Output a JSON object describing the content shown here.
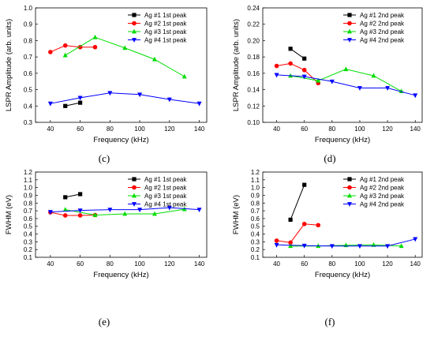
{
  "chart_data": [
    {
      "type": "line",
      "panel_label": "(c)",
      "xlabel": "Frequency (kHz)",
      "ylabel": "LSPR Amplitude (arb. units)",
      "xlim": [
        30,
        145
      ],
      "ylim": [
        0.3,
        1.0
      ],
      "xticks": [
        40,
        60,
        80,
        100,
        120,
        140
      ],
      "xtick_labels": [
        "40",
        "60",
        "80",
        "100",
        "120",
        "140"
      ],
      "yticks": [
        0.3,
        0.4,
        0.5,
        0.6,
        0.7,
        0.8,
        0.9,
        1.0
      ],
      "ytick_labels": [
        "0.3",
        "0.4",
        "0.5",
        "0.6",
        "0.7",
        "0.8",
        "0.9",
        "1.0"
      ],
      "legend_position": "top-right",
      "series": [
        {
          "name": "Ag #1 1st peak",
          "color": "#000000",
          "marker": "square",
          "x": [
            50,
            60
          ],
          "y": [
            0.4,
            0.42
          ]
        },
        {
          "name": "Ag #2 1st peak",
          "color": "#ff0000",
          "marker": "circle",
          "x": [
            40,
            50,
            60,
            70
          ],
          "y": [
            0.73,
            0.77,
            0.76,
            0.76
          ]
        },
        {
          "name": "Ag #3 1st peak",
          "color": "#00dd00",
          "marker": "triangle-up",
          "x": [
            50,
            70,
            90,
            110,
            130
          ],
          "y": [
            0.71,
            0.82,
            0.755,
            0.685,
            0.58
          ]
        },
        {
          "name": "Ag #4 1st peak",
          "color": "#0000ff",
          "marker": "triangle-down",
          "x": [
            40,
            60,
            80,
            100,
            120,
            140
          ],
          "y": [
            0.415,
            0.45,
            0.48,
            0.47,
            0.44,
            0.415
          ]
        }
      ]
    },
    {
      "type": "line",
      "panel_label": "(d)",
      "xlabel": "Frequency (kHz)",
      "ylabel": "LSPR Amplitude (arb. units)",
      "xlim": [
        30,
        145
      ],
      "ylim": [
        0.1,
        0.24
      ],
      "xticks": [
        40,
        60,
        80,
        100,
        120,
        140
      ],
      "xtick_labels": [
        "40",
        "60",
        "80",
        "100",
        "120",
        "140"
      ],
      "yticks": [
        0.1,
        0.12,
        0.14,
        0.16,
        0.18,
        0.2,
        0.22,
        0.24
      ],
      "ytick_labels": [
        "0.10",
        "0.12",
        "0.14",
        "0.16",
        "0.18",
        "0.20",
        "0.22",
        "0.24"
      ],
      "legend_position": "top-right",
      "series": [
        {
          "name": "Ag #1 2nd peak",
          "color": "#000000",
          "marker": "square",
          "x": [
            50,
            60
          ],
          "y": [
            0.19,
            0.178
          ]
        },
        {
          "name": "Ag #2 2nd peak",
          "color": "#ff0000",
          "marker": "circle",
          "x": [
            40,
            50,
            60,
            70
          ],
          "y": [
            0.169,
            0.172,
            0.164,
            0.148
          ]
        },
        {
          "name": "Ag #3 2nd peak",
          "color": "#00dd00",
          "marker": "triangle-up",
          "x": [
            50,
            70,
            90,
            110,
            130
          ],
          "y": [
            0.157,
            0.151,
            0.165,
            0.157,
            0.138
          ]
        },
        {
          "name": "Ag #4 2nd peak",
          "color": "#0000ff",
          "marker": "triangle-down",
          "x": [
            40,
            60,
            80,
            100,
            120,
            140
          ],
          "y": [
            0.158,
            0.156,
            0.15,
            0.142,
            0.142,
            0.133
          ]
        }
      ]
    },
    {
      "type": "line",
      "panel_label": "(e)",
      "xlabel": "Frequency (kHz)",
      "ylabel": "FWHM (eV)",
      "xlim": [
        30,
        145
      ],
      "ylim": [
        0.1,
        1.2
      ],
      "xticks": [
        40,
        60,
        80,
        100,
        120,
        140
      ],
      "xtick_labels": [
        "40",
        "60",
        "80",
        "100",
        "120",
        "140"
      ],
      "yticks": [
        0.1,
        0.2,
        0.3,
        0.4,
        0.5,
        0.6,
        0.7,
        0.8,
        0.9,
        1.0,
        1.1,
        1.2
      ],
      "ytick_labels": [
        "0.1",
        "0.2",
        "0.3",
        "0.4",
        "0.5",
        "0.6",
        "0.7",
        "0.8",
        "0.9",
        "1.0",
        "1.1",
        "1.2"
      ],
      "legend_position": "top-right",
      "series": [
        {
          "name": "Ag #1 1st peak",
          "color": "#000000",
          "marker": "square",
          "x": [
            50,
            60
          ],
          "y": [
            0.875,
            0.915
          ]
        },
        {
          "name": "Ag #2 1st peak",
          "color": "#ff0000",
          "marker": "circle",
          "x": [
            40,
            50,
            60,
            70
          ],
          "y": [
            0.68,
            0.64,
            0.64,
            0.645
          ]
        },
        {
          "name": "Ag #3 1st peak",
          "color": "#00dd00",
          "marker": "triangle-up",
          "x": [
            50,
            70,
            90,
            110,
            130
          ],
          "y": [
            0.715,
            0.645,
            0.66,
            0.66,
            0.72
          ]
        },
        {
          "name": "Ag #4 1st peak",
          "color": "#0000ff",
          "marker": "triangle-down",
          "x": [
            40,
            60,
            80,
            100,
            120,
            140
          ],
          "y": [
            0.685,
            0.705,
            0.715,
            0.715,
            0.74,
            0.715
          ]
        }
      ]
    },
    {
      "type": "line",
      "panel_label": "(f)",
      "xlabel": "Frequency (kHz)",
      "ylabel": "FWHM (eV)",
      "xlim": [
        30,
        145
      ],
      "ylim": [
        0.1,
        1.2
      ],
      "xticks": [
        40,
        60,
        80,
        100,
        120,
        140
      ],
      "xtick_labels": [
        "40",
        "60",
        "80",
        "100",
        "120",
        "140"
      ],
      "yticks": [
        0.1,
        0.2,
        0.3,
        0.4,
        0.5,
        0.6,
        0.7,
        0.8,
        0.9,
        1.0,
        1.1,
        1.2
      ],
      "ytick_labels": [
        "0.1",
        "0.2",
        "0.3",
        "0.4",
        "0.5",
        "0.6",
        "0.7",
        "0.8",
        "0.9",
        "1.0",
        "1.1",
        "1.2"
      ],
      "legend_position": "top-right",
      "series": [
        {
          "name": "Ag #1 2nd peak",
          "color": "#000000",
          "marker": "square",
          "x": [
            50,
            60
          ],
          "y": [
            0.585,
            1.035
          ]
        },
        {
          "name": "Ag #2 2nd peak",
          "color": "#ff0000",
          "marker": "circle",
          "x": [
            40,
            50,
            60,
            70
          ],
          "y": [
            0.315,
            0.29,
            0.53,
            0.515
          ]
        },
        {
          "name": "Ag #3 2nd peak",
          "color": "#00dd00",
          "marker": "triangle-up",
          "x": [
            50,
            70,
            90,
            110,
            130
          ],
          "y": [
            0.245,
            0.245,
            0.255,
            0.26,
            0.245
          ]
        },
        {
          "name": "Ag #4 2nd peak",
          "color": "#0000ff",
          "marker": "triangle-down",
          "x": [
            40,
            60,
            80,
            100,
            120,
            140
          ],
          "y": [
            0.26,
            0.25,
            0.245,
            0.245,
            0.245,
            0.335
          ]
        }
      ]
    }
  ]
}
